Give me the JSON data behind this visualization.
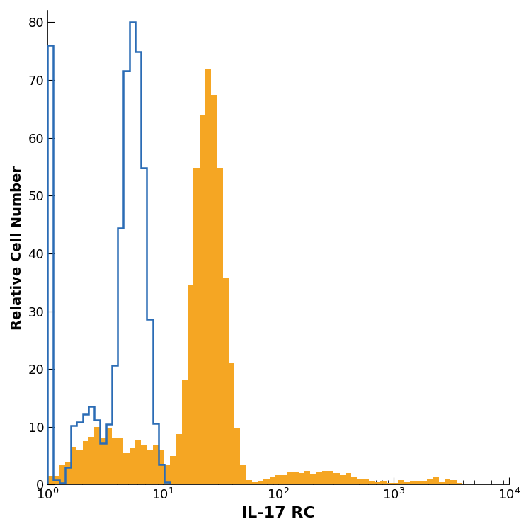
{
  "xlabel": "IL-17 RC",
  "ylabel": "Relative Cell Number",
  "xlim": [
    1.0,
    10000
  ],
  "ylim": [
    0,
    82
  ],
  "yticks": [
    0,
    10,
    20,
    30,
    40,
    50,
    60,
    70,
    80
  ],
  "xtick_labels": [
    "$10^{0}$",
    "$10^{1}$",
    "$10^{2}$",
    "$10^{3}$",
    "$10^{4}$"
  ],
  "xtick_positions": [
    1,
    10,
    100,
    1000,
    10000
  ],
  "blue_color": "#2B6CB5",
  "orange_color": "#F5A623",
  "background_color": "#ffffff",
  "blue_peak": 80.0,
  "orange_peak": 72.0,
  "figsize": [
    7.5,
    7.5
  ],
  "dpi": 100,
  "num_bins": 80
}
